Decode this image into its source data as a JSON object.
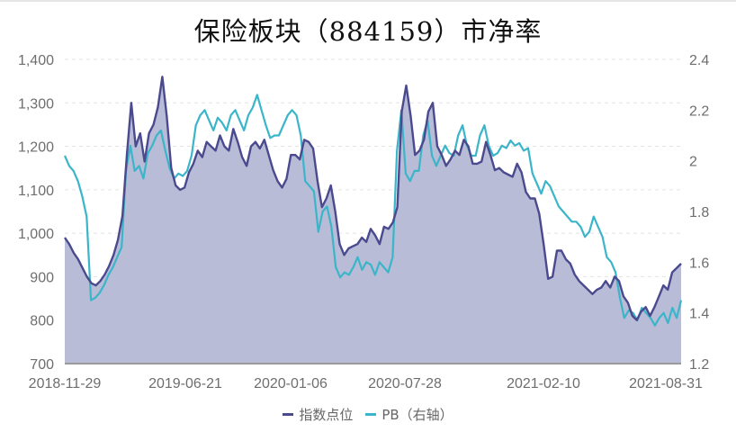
{
  "title": "保险板块（884159）市净率",
  "legend": [
    {
      "label": "指数点位",
      "color": "#4b4a8f"
    },
    {
      "label": "PB（右轴）",
      "color": "#3ab5c9"
    }
  ],
  "colors": {
    "index_line": "#4b4a8f",
    "pb_line": "#3ab5c9",
    "area_fill": "#b4b8d4",
    "grid": "#e3e3e3",
    "axis": "#9a9a9a"
  },
  "chart_data": {
    "type": "line",
    "title": "保险板块（884159）市净率",
    "xlabel": "",
    "ylabel_left": "指数点位",
    "ylabel_right": "PB",
    "x_tick_labels": [
      "2018-11-29",
      "2019-06-21",
      "2020-01-06",
      "2020-07-28",
      "2021-02-10",
      "2021-08-31"
    ],
    "y_left_ticks": [
      "700",
      "800",
      "900",
      "1,000",
      "1,100",
      "1,200",
      "1,300",
      "1,400"
    ],
    "y_right_ticks": [
      "1.2",
      "1.4",
      "1.6",
      "1.8",
      "2",
      "2.2",
      "2.4"
    ],
    "ylim_left": [
      700,
      1400
    ],
    "ylim_right": [
      1.2,
      2.4
    ],
    "grid": true,
    "legend_position": "bottom",
    "series": [
      {
        "name": "指数点位",
        "axis": "left",
        "fill": "area",
        "values": [
          990,
          975,
          955,
          940,
          920,
          900,
          885,
          880,
          890,
          905,
          925,
          950,
          985,
          1040,
          1180,
          1300,
          1200,
          1230,
          1165,
          1230,
          1250,
          1290,
          1360,
          1270,
          1150,
          1110,
          1100,
          1105,
          1140,
          1160,
          1190,
          1175,
          1210,
          1200,
          1190,
          1225,
          1200,
          1190,
          1240,
          1210,
          1175,
          1155,
          1200,
          1210,
          1195,
          1215,
          1180,
          1145,
          1120,
          1105,
          1125,
          1180,
          1180,
          1170,
          1215,
          1210,
          1195,
          1120,
          1060,
          1080,
          1110,
          1050,
          975,
          950,
          965,
          970,
          975,
          990,
          980,
          1010,
          995,
          975,
          1015,
          1010,
          1025,
          1060,
          1280,
          1340,
          1270,
          1180,
          1190,
          1215,
          1280,
          1300,
          1200,
          1180,
          1155,
          1170,
          1190,
          1180,
          1215,
          1200,
          1160,
          1160,
          1165,
          1210,
          1180,
          1145,
          1150,
          1140,
          1135,
          1130,
          1160,
          1140,
          1095,
          1080,
          1080,
          1045,
          975,
          895,
          900,
          960,
          960,
          940,
          930,
          905,
          890,
          880,
          870,
          860,
          870,
          875,
          890,
          875,
          900,
          890,
          855,
          840,
          810,
          800,
          820,
          830,
          810,
          830,
          855,
          880,
          870,
          910,
          920,
          930
        ]
      },
      {
        "name": "PB（右轴）",
        "axis": "right",
        "fill": "none",
        "values": [
          2.02,
          1.98,
          1.96,
          1.92,
          1.86,
          1.78,
          1.45,
          1.46,
          1.48,
          1.51,
          1.55,
          1.58,
          1.62,
          1.66,
          1.96,
          2.06,
          1.96,
          1.98,
          1.93,
          2.03,
          2.06,
          2.1,
          2.12,
          2.04,
          1.97,
          1.93,
          1.95,
          1.94,
          1.96,
          2.02,
          2.14,
          2.18,
          2.2,
          2.16,
          2.12,
          2.17,
          2.15,
          2.12,
          2.18,
          2.2,
          2.16,
          2.12,
          2.18,
          2.21,
          2.26,
          2.2,
          2.14,
          2.09,
          2.1,
          2.1,
          2.14,
          2.18,
          2.2,
          2.18,
          2.1,
          1.92,
          1.9,
          1.88,
          1.72,
          1.8,
          1.82,
          1.74,
          1.58,
          1.54,
          1.56,
          1.55,
          1.58,
          1.62,
          1.57,
          1.6,
          1.59,
          1.55,
          1.6,
          1.58,
          1.56,
          1.62,
          2.04,
          2.2,
          1.95,
          1.92,
          1.96,
          1.96,
          2.1,
          2.16,
          2.02,
          1.98,
          2.02,
          2.06,
          2.03,
          2.02,
          2.1,
          2.14,
          2.06,
          2.02,
          2.02,
          2.1,
          2.14,
          2.06,
          2.02,
          2.03,
          2.06,
          2.05,
          2.08,
          2.06,
          2.07,
          2.04,
          2.05,
          1.95,
          1.91,
          1.87,
          1.92,
          1.9,
          1.86,
          1.82,
          1.8,
          1.78,
          1.76,
          1.76,
          1.74,
          1.7,
          1.72,
          1.78,
          1.74,
          1.7,
          1.62,
          1.6,
          1.56,
          1.46,
          1.38,
          1.41,
          1.4,
          1.37,
          1.42,
          1.4,
          1.38,
          1.35,
          1.38,
          1.4,
          1.36,
          1.42,
          1.38,
          1.45
        ]
      }
    ]
  }
}
